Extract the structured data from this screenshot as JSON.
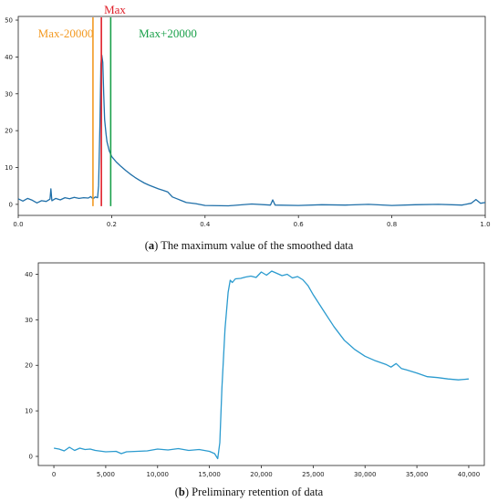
{
  "captions": {
    "a": {
      "label": "a",
      "text": "The maximum value of the smoothed data"
    },
    "b": {
      "label": "b",
      "text": "Preliminary retention of data"
    }
  },
  "chart_data": [
    {
      "type": "line",
      "xlim": [
        0.0,
        1.0
      ],
      "ylim": [
        -3,
        51
      ],
      "xticks": [
        0.0,
        0.2,
        0.4,
        0.6,
        0.8,
        1.0
      ],
      "xtick_labels": [
        "0.0",
        "0.2",
        "0.4",
        "0.6",
        "0.8",
        "1.0"
      ],
      "yticks": [
        0,
        10,
        20,
        30,
        40,
        50
      ],
      "ytick_labels": [
        "0",
        "10",
        "20",
        "30",
        "40",
        "50"
      ],
      "grid": false,
      "line_color": "#1f6fa8",
      "series": [
        {
          "x": [
            0.0,
            0.01,
            0.02,
            0.03,
            0.04,
            0.05,
            0.06,
            0.068,
            0.07,
            0.072,
            0.08,
            0.09,
            0.1,
            0.11,
            0.12,
            0.13,
            0.14,
            0.15,
            0.155,
            0.16,
            0.165,
            0.17,
            0.172,
            0.175,
            0.177,
            0.179,
            0.181,
            0.183,
            0.185,
            0.188,
            0.19,
            0.195,
            0.2,
            0.21,
            0.22,
            0.23,
            0.24,
            0.25,
            0.26,
            0.27,
            0.28,
            0.29,
            0.3,
            0.31,
            0.32,
            0.33,
            0.34,
            0.35,
            0.36,
            0.38,
            0.4,
            0.45,
            0.5,
            0.54,
            0.545,
            0.55,
            0.6,
            0.65,
            0.7,
            0.75,
            0.8,
            0.85,
            0.9,
            0.95,
            0.97,
            0.98,
            0.99,
            1.0
          ],
          "y": [
            1.5,
            0.9,
            1.6,
            1.1,
            0.4,
            1.0,
            0.8,
            1.4,
            4.2,
            1.0,
            1.6,
            1.2,
            1.8,
            1.5,
            1.9,
            1.6,
            1.8,
            1.7,
            2.1,
            1.5,
            2.0,
            1.8,
            5.0,
            22.0,
            38.0,
            40.5,
            38.5,
            30.0,
            23.0,
            19.0,
            17.0,
            14.5,
            13.0,
            11.5,
            10.3,
            9.2,
            8.2,
            7.3,
            6.5,
            5.8,
            5.2,
            4.7,
            4.2,
            3.8,
            3.4,
            2.0,
            1.5,
            1.0,
            0.5,
            0.2,
            -0.3,
            -0.4,
            0.1,
            -0.2,
            1.2,
            -0.2,
            -0.3,
            -0.1,
            -0.2,
            0.0,
            -0.3,
            -0.1,
            0.0,
            -0.2,
            0.3,
            1.3,
            0.3,
            0.5
          ]
        }
      ],
      "vlines": [
        {
          "label": "Max-20000",
          "x": 0.16,
          "color": "#f39a23"
        },
        {
          "label": "Max",
          "x": 0.178,
          "color": "#e0202a"
        },
        {
          "label": "Max+20000",
          "x": 0.198,
          "color": "#1aa04a"
        }
      ]
    },
    {
      "type": "line",
      "xlim": [
        -1500,
        41500
      ],
      "ylim": [
        -2,
        42.5
      ],
      "xticks": [
        0,
        5000,
        10000,
        15000,
        20000,
        25000,
        30000,
        35000,
        40000
      ],
      "xtick_labels": [
        "0",
        "5,000",
        "10,000",
        "15,000",
        "20,000",
        "25,000",
        "30,000",
        "35,000",
        "40,000"
      ],
      "yticks": [
        0,
        10,
        20,
        30,
        40
      ],
      "ytick_labels": [
        "0",
        "10",
        "20",
        "30",
        "40"
      ],
      "grid": false,
      "line_color": "#2b9bcf",
      "series": [
        {
          "x": [
            0,
            500,
            1000,
            1500,
            2000,
            2500,
            3000,
            3500,
            4000,
            5000,
            6000,
            6500,
            7000,
            8000,
            9000,
            10000,
            11000,
            12000,
            13000,
            14000,
            15000,
            15500,
            15800,
            16000,
            16200,
            16500,
            16800,
            17000,
            17200,
            17500,
            18000,
            18500,
            19000,
            19500,
            20000,
            20500,
            21000,
            21500,
            22000,
            22500,
            23000,
            23500,
            24000,
            24500,
            25000,
            26000,
            27000,
            28000,
            29000,
            30000,
            31000,
            32000,
            32500,
            33000,
            33500,
            34000,
            35000,
            36000,
            37000,
            38000,
            39000,
            40000
          ],
          "y": [
            1.8,
            1.6,
            1.2,
            2.0,
            1.3,
            1.8,
            1.5,
            1.6,
            1.3,
            1.0,
            1.1,
            0.6,
            1.0,
            1.1,
            1.2,
            1.6,
            1.4,
            1.7,
            1.3,
            1.5,
            1.1,
            0.6,
            -0.5,
            3.0,
            15.0,
            28.0,
            36.0,
            38.7,
            38.2,
            39.0,
            39.1,
            39.4,
            39.6,
            39.3,
            40.5,
            39.8,
            40.7,
            40.2,
            39.7,
            40.0,
            39.2,
            39.5,
            38.8,
            37.5,
            35.5,
            32.0,
            28.5,
            25.5,
            23.5,
            22.0,
            21.0,
            20.2,
            19.6,
            20.4,
            19.3,
            19.0,
            18.3,
            17.5,
            17.3,
            17.0,
            16.8,
            17.0
          ]
        }
      ]
    }
  ]
}
